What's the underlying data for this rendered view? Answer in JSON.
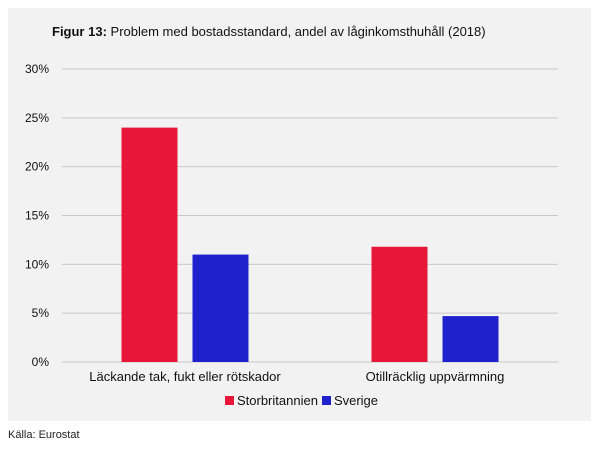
{
  "figure": {
    "number_label": "Figur 13:",
    "title": "Problem med bostadsstandard, andel av låginkomsthuhåll (2018)"
  },
  "source": "Källa: Eurostat",
  "colors": {
    "Storbritannien": "#e8173a",
    "Sverige": "#1f22cc",
    "grid": "#c8c8c8",
    "panel": "#f2f2f2"
  },
  "chart_data": {
    "type": "bar",
    "title": "Problem med bostadsstandard, andel av låginkomsthuhåll (2018)",
    "categories": [
      "Läckande tak, fukt eller rötskador",
      "Otillräcklig uppvärmning"
    ],
    "series": [
      {
        "name": "Storbritannien",
        "values": [
          24,
          11.8
        ]
      },
      {
        "name": "Sverige",
        "values": [
          11,
          4.7
        ]
      }
    ],
    "y_ticks": [
      "0%",
      "5%",
      "10%",
      "15%",
      "20%",
      "25%",
      "30%"
    ],
    "ylim": [
      0,
      30
    ],
    "grid": true,
    "legend": "bottom-center"
  }
}
